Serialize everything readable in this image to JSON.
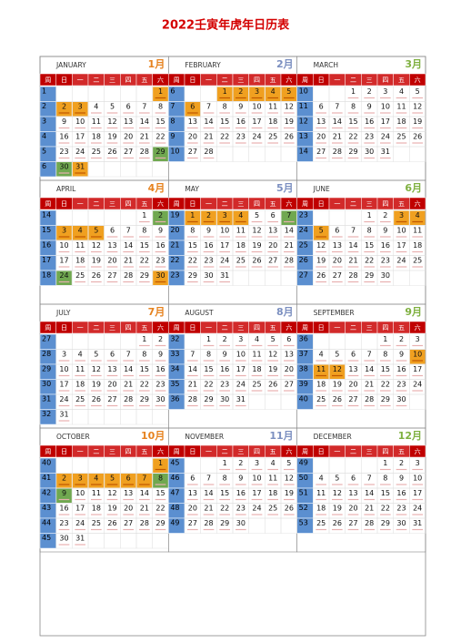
{
  "title": "2022壬寅年虎年日历表",
  "weekdays": [
    "周",
    "日",
    "一",
    "二",
    "三",
    "四",
    "五",
    "六"
  ],
  "months": [
    {
      "name": "JANUARY",
      "label": "1月",
      "holiday": [
        1,
        2,
        3,
        31
      ],
      "workday": [
        29,
        30
      ],
      "weeks": [
        {
          "week": 1,
          "days": [
            null,
            null,
            null,
            null,
            null,
            null,
            1
          ]
        },
        {
          "week": 2,
          "days": [
            2,
            3,
            4,
            5,
            6,
            7,
            8
          ]
        },
        {
          "week": 3,
          "days": [
            9,
            10,
            11,
            12,
            13,
            14,
            15
          ]
        },
        {
          "week": 4,
          "days": [
            16,
            17,
            18,
            19,
            20,
            21,
            22
          ]
        },
        {
          "week": 5,
          "days": [
            23,
            24,
            25,
            26,
            27,
            28,
            29
          ]
        },
        {
          "week": 6,
          "days": [
            30,
            31,
            null,
            null,
            null,
            null,
            null
          ]
        }
      ]
    },
    {
      "name": "FEBRUARY",
      "label": "2月",
      "holiday": [
        1,
        2,
        3,
        4,
        5,
        6
      ],
      "workday": [],
      "weeks": [
        {
          "week": 6,
          "days": [
            null,
            null,
            1,
            2,
            3,
            4,
            5
          ]
        },
        {
          "week": 7,
          "days": [
            6,
            7,
            8,
            9,
            10,
            11,
            12
          ]
        },
        {
          "week": 8,
          "days": [
            13,
            14,
            15,
            16,
            17,
            18,
            19
          ]
        },
        {
          "week": 9,
          "days": [
            20,
            21,
            22,
            23,
            24,
            25,
            26
          ]
        },
        {
          "week": 10,
          "days": [
            27,
            28,
            null,
            null,
            null,
            null,
            null
          ]
        }
      ]
    },
    {
      "name": "MARCH",
      "label": "3月",
      "holiday": [],
      "workday": [],
      "weeks": [
        {
          "week": 10,
          "days": [
            null,
            null,
            1,
            2,
            3,
            4,
            5
          ]
        },
        {
          "week": 11,
          "days": [
            6,
            7,
            8,
            9,
            10,
            11,
            12
          ]
        },
        {
          "week": 12,
          "days": [
            13,
            14,
            15,
            16,
            17,
            18,
            19
          ]
        },
        {
          "week": 13,
          "days": [
            20,
            21,
            22,
            23,
            24,
            25,
            26
          ]
        },
        {
          "week": 14,
          "days": [
            27,
            28,
            29,
            30,
            31,
            null,
            null
          ]
        }
      ]
    },
    {
      "name": "APRIL",
      "label": "4月",
      "holiday": [
        3,
        4,
        5,
        30
      ],
      "workday": [
        2,
        24
      ],
      "weeks": [
        {
          "week": 14,
          "days": [
            null,
            null,
            null,
            null,
            null,
            1,
            2
          ]
        },
        {
          "week": 15,
          "days": [
            3,
            4,
            5,
            6,
            7,
            8,
            9
          ]
        },
        {
          "week": 16,
          "days": [
            10,
            11,
            12,
            13,
            14,
            15,
            16
          ]
        },
        {
          "week": 17,
          "days": [
            17,
            18,
            19,
            20,
            21,
            22,
            23
          ]
        },
        {
          "week": 18,
          "days": [
            24,
            25,
            26,
            27,
            28,
            29,
            30
          ]
        }
      ]
    },
    {
      "name": "MAY",
      "label": "5月",
      "holiday": [
        1,
        2,
        3,
        4
      ],
      "workday": [
        7
      ],
      "weeks": [
        {
          "week": 19,
          "days": [
            1,
            2,
            3,
            4,
            5,
            6,
            7
          ]
        },
        {
          "week": 20,
          "days": [
            8,
            9,
            10,
            11,
            12,
            13,
            14
          ]
        },
        {
          "week": 21,
          "days": [
            15,
            16,
            17,
            18,
            19,
            20,
            21
          ]
        },
        {
          "week": 22,
          "days": [
            22,
            23,
            24,
            25,
            26,
            27,
            28
          ]
        },
        {
          "week": 23,
          "days": [
            29,
            30,
            31,
            null,
            null,
            null,
            null
          ]
        }
      ]
    },
    {
      "name": "JUNE",
      "label": "6月",
      "holiday": [
        3,
        4,
        5
      ],
      "workday": [],
      "weeks": [
        {
          "week": 23,
          "days": [
            null,
            null,
            null,
            1,
            2,
            3,
            4
          ]
        },
        {
          "week": 24,
          "days": [
            5,
            6,
            7,
            8,
            9,
            10,
            11
          ]
        },
        {
          "week": 25,
          "days": [
            12,
            13,
            14,
            15,
            16,
            17,
            18
          ]
        },
        {
          "week": 26,
          "days": [
            19,
            20,
            21,
            22,
            23,
            24,
            25
          ]
        },
        {
          "week": 27,
          "days": [
            26,
            27,
            28,
            29,
            30,
            null,
            null
          ]
        }
      ]
    },
    {
      "name": "JULY",
      "label": "7月",
      "holiday": [],
      "workday": [],
      "weeks": [
        {
          "week": 27,
          "days": [
            null,
            null,
            null,
            null,
            null,
            1,
            2
          ]
        },
        {
          "week": 28,
          "days": [
            3,
            4,
            5,
            6,
            7,
            8,
            9
          ]
        },
        {
          "week": 29,
          "days": [
            10,
            11,
            12,
            13,
            14,
            15,
            16
          ]
        },
        {
          "week": 30,
          "days": [
            17,
            18,
            19,
            20,
            21,
            22,
            23
          ]
        },
        {
          "week": 31,
          "days": [
            24,
            25,
            26,
            27,
            28,
            29,
            30
          ]
        },
        {
          "week": 32,
          "days": [
            31,
            null,
            null,
            null,
            null,
            null,
            null
          ]
        }
      ]
    },
    {
      "name": "AUGUST",
      "label": "8月",
      "holiday": [],
      "workday": [],
      "weeks": [
        {
          "week": 32,
          "days": [
            null,
            1,
            2,
            3,
            4,
            5,
            6
          ]
        },
        {
          "week": 33,
          "days": [
            7,
            8,
            9,
            10,
            11,
            12,
            13
          ]
        },
        {
          "week": 34,
          "days": [
            14,
            15,
            16,
            17,
            18,
            19,
            20
          ]
        },
        {
          "week": 35,
          "days": [
            21,
            22,
            23,
            24,
            25,
            26,
            27
          ]
        },
        {
          "week": 36,
          "days": [
            28,
            29,
            30,
            31,
            null,
            null,
            null
          ]
        }
      ]
    },
    {
      "name": "SEPTEMBER",
      "label": "9月",
      "holiday": [
        10,
        11,
        12
      ],
      "workday": [],
      "weeks": [
        {
          "week": 36,
          "days": [
            null,
            null,
            null,
            null,
            1,
            2,
            3
          ]
        },
        {
          "week": 37,
          "days": [
            4,
            5,
            6,
            7,
            8,
            9,
            10
          ]
        },
        {
          "week": 38,
          "days": [
            11,
            12,
            13,
            14,
            15,
            16,
            17
          ]
        },
        {
          "week": 39,
          "days": [
            18,
            19,
            20,
            21,
            22,
            23,
            24
          ]
        },
        {
          "week": 40,
          "days": [
            25,
            26,
            27,
            28,
            29,
            30,
            null
          ]
        }
      ]
    },
    {
      "name": "OCTOBER",
      "label": "10月",
      "holiday": [
        1,
        2,
        3,
        4,
        5,
        6,
        7
      ],
      "workday": [
        8,
        9
      ],
      "weeks": [
        {
          "week": 40,
          "days": [
            null,
            null,
            null,
            null,
            null,
            null,
            1
          ]
        },
        {
          "week": 41,
          "days": [
            2,
            3,
            4,
            5,
            6,
            7,
            8
          ]
        },
        {
          "week": 42,
          "days": [
            9,
            10,
            11,
            12,
            13,
            14,
            15
          ]
        },
        {
          "week": 43,
          "days": [
            16,
            17,
            18,
            19,
            20,
            21,
            22
          ]
        },
        {
          "week": 44,
          "days": [
            23,
            24,
            25,
            26,
            27,
            28,
            29
          ]
        },
        {
          "week": 45,
          "days": [
            30,
            31,
            null,
            null,
            null,
            null,
            null
          ]
        }
      ]
    },
    {
      "name": "NOVEMBER",
      "label": "11月",
      "holiday": [],
      "workday": [],
      "weeks": [
        {
          "week": 45,
          "days": [
            null,
            null,
            1,
            2,
            3,
            4,
            5
          ]
        },
        {
          "week": 46,
          "days": [
            6,
            7,
            8,
            9,
            10,
            11,
            12
          ]
        },
        {
          "week": 47,
          "days": [
            13,
            14,
            15,
            16,
            17,
            18,
            19
          ]
        },
        {
          "week": 48,
          "days": [
            20,
            21,
            22,
            23,
            24,
            25,
            26
          ]
        },
        {
          "week": 49,
          "days": [
            27,
            28,
            29,
            30,
            null,
            null,
            null
          ]
        }
      ]
    },
    {
      "name": "DECEMBER",
      "label": "12月",
      "holiday": [],
      "workday": [],
      "weeks": [
        {
          "week": 49,
          "days": [
            null,
            null,
            null,
            null,
            1,
            2,
            3
          ]
        },
        {
          "week": 50,
          "days": [
            4,
            5,
            6,
            7,
            8,
            9,
            10
          ]
        },
        {
          "week": 51,
          "days": [
            11,
            12,
            13,
            14,
            15,
            16,
            17
          ]
        },
        {
          "week": 52,
          "days": [
            18,
            19,
            20,
            21,
            22,
            23,
            24
          ]
        },
        {
          "week": 53,
          "days": [
            25,
            26,
            27,
            28,
            29,
            30,
            31
          ]
        }
      ]
    }
  ]
}
